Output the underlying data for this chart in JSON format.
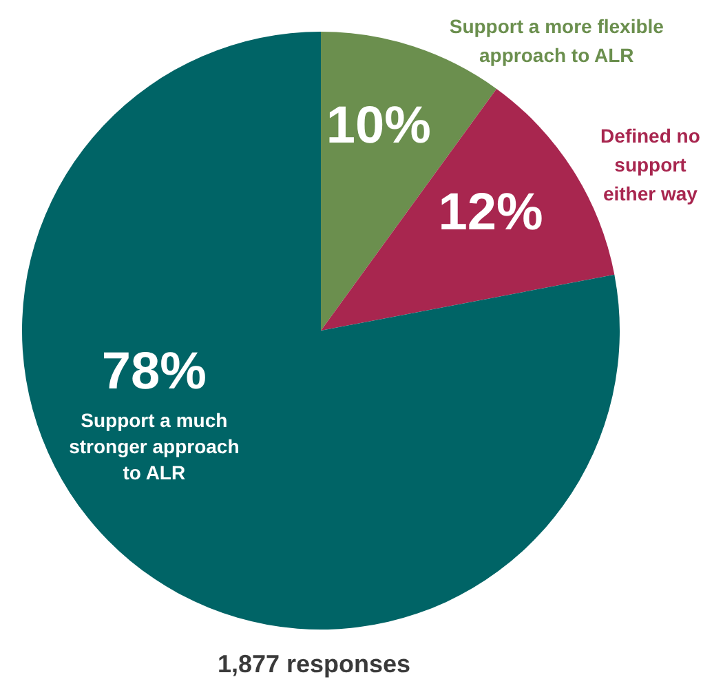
{
  "chart_data": {
    "type": "pie",
    "categories": [
      "Support a more flexible approach to ALR",
      "Defined no support either way",
      "Support a much stronger approach to ALR"
    ],
    "values": [
      10,
      12,
      78
    ],
    "colors": [
      "#6b8f4e",
      "#a8264f",
      "#006466"
    ],
    "value_labels": [
      "10%",
      "12%",
      "78%"
    ],
    "annotations": [
      "1,877 responses"
    ]
  }
}
